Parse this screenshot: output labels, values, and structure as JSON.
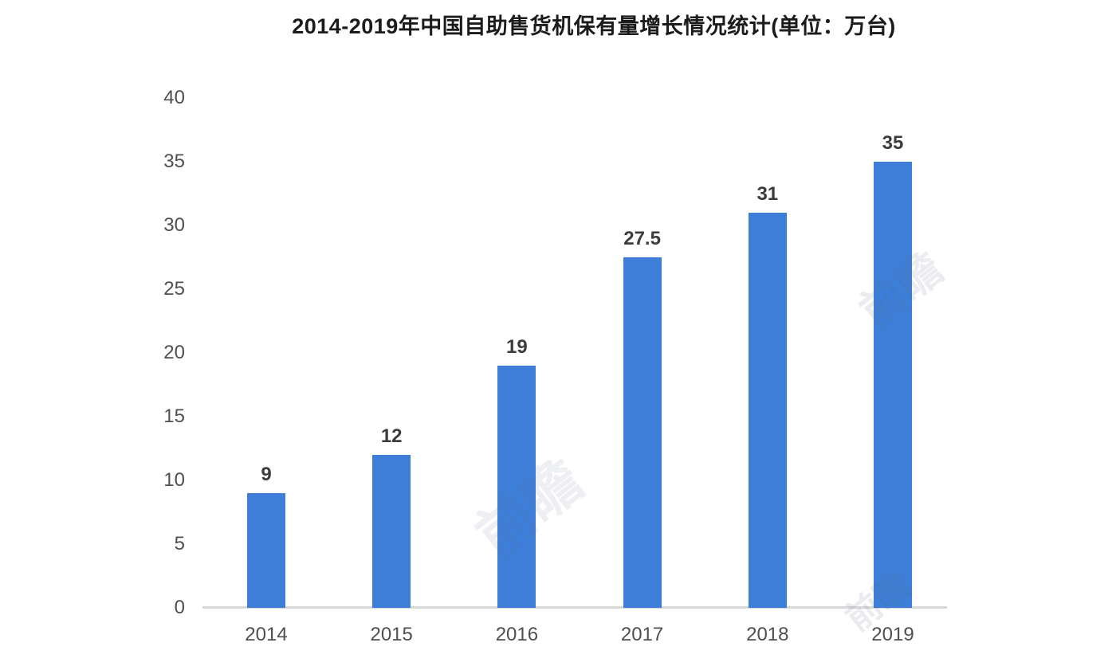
{
  "page": {
    "background": "#ffffff"
  },
  "chart_data": {
    "type": "bar",
    "title": "2014-2019年中国自助售货机保有量增长情况统计(单位：万台)",
    "categories": [
      "2014",
      "2015",
      "2016",
      "2017",
      "2018",
      "2019"
    ],
    "values": [
      9,
      12,
      19,
      27.5,
      31,
      35
    ],
    "value_labels": [
      "9",
      "12",
      "19",
      "27.5",
      "31",
      "35"
    ],
    "xlabel": "",
    "ylabel": "",
    "ylim": [
      0,
      40
    ],
    "yticks": [
      0,
      5,
      10,
      15,
      20,
      25,
      30,
      35,
      40
    ],
    "grid": false,
    "legend": "none",
    "bar_color": "#3d7fd8",
    "axis_line_color": "#d8d8d8",
    "title_color": "#1b1b1b",
    "tick_color": "#4f4f4f",
    "value_label_color": "#3c3c3c"
  },
  "watermark": {
    "text": "前瞻",
    "color": "#5a6b85"
  }
}
